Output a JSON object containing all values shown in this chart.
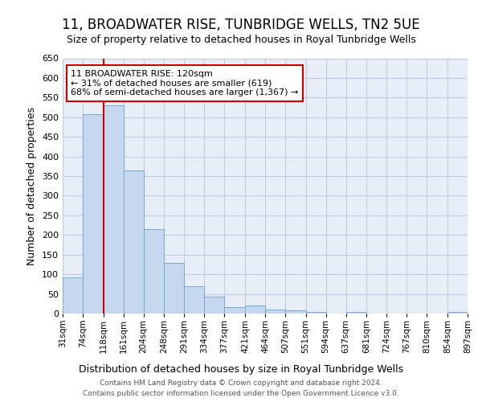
{
  "title": "11, BROADWATER RISE, TUNBRIDGE WELLS, TN2 5UE",
  "subtitle": "Size of property relative to detached houses in Royal Tunbridge Wells",
  "xlabel": "Distribution of detached houses by size in Royal Tunbridge Wells",
  "ylabel": "Number of detached properties",
  "footer_line1": "Contains HM Land Registry data © Crown copyright and database right 2024.",
  "footer_line2": "Contains public sector information licensed under the Open Government Licence v3.0.",
  "annotation_line1": "11 BROADWATER RISE: 120sqm",
  "annotation_line2": "← 31% of detached houses are smaller (619)",
  "annotation_line3": "68% of semi-detached houses are larger (1,367) →",
  "bar_heights": [
    93,
    507,
    530,
    365,
    215,
    128,
    70,
    43,
    17,
    21,
    10,
    8,
    5,
    0,
    5,
    0,
    0,
    0,
    0,
    5
  ],
  "bin_edges": [
    31,
    74,
    118,
    161,
    204,
    248,
    291,
    334,
    377,
    421,
    464,
    507,
    551,
    594,
    637,
    681,
    724,
    767,
    810,
    854,
    897
  ],
  "tick_labels": [
    "31sqm",
    "74sqm",
    "118sqm",
    "161sqm",
    "204sqm",
    "248sqm",
    "291sqm",
    "334sqm",
    "377sqm",
    "421sqm",
    "464sqm",
    "507sqm",
    "551sqm",
    "594sqm",
    "637sqm",
    "681sqm",
    "724sqm",
    "767sqm",
    "810sqm",
    "854sqm",
    "897sqm"
  ],
  "bar_color": "#c5d8f0",
  "bar_edge_color": "#7aaad0",
  "vline_x": 118,
  "vline_color": "#cc0000",
  "ylim": [
    0,
    650
  ],
  "yticks": [
    0,
    50,
    100,
    150,
    200,
    250,
    300,
    350,
    400,
    450,
    500,
    550,
    600,
    650
  ],
  "annotation_box_edgecolor": "#cc0000",
  "bg_color": "#e8eef8",
  "grid_color": "#c0cce0",
  "title_fontsize": 12,
  "subtitle_fontsize": 9,
  "ylabel_fontsize": 9,
  "xlabel_fontsize": 9,
  "tick_fontsize": 7.5,
  "ytick_fontsize": 8,
  "annotation_fontsize": 8,
  "footer_fontsize": 6.5
}
